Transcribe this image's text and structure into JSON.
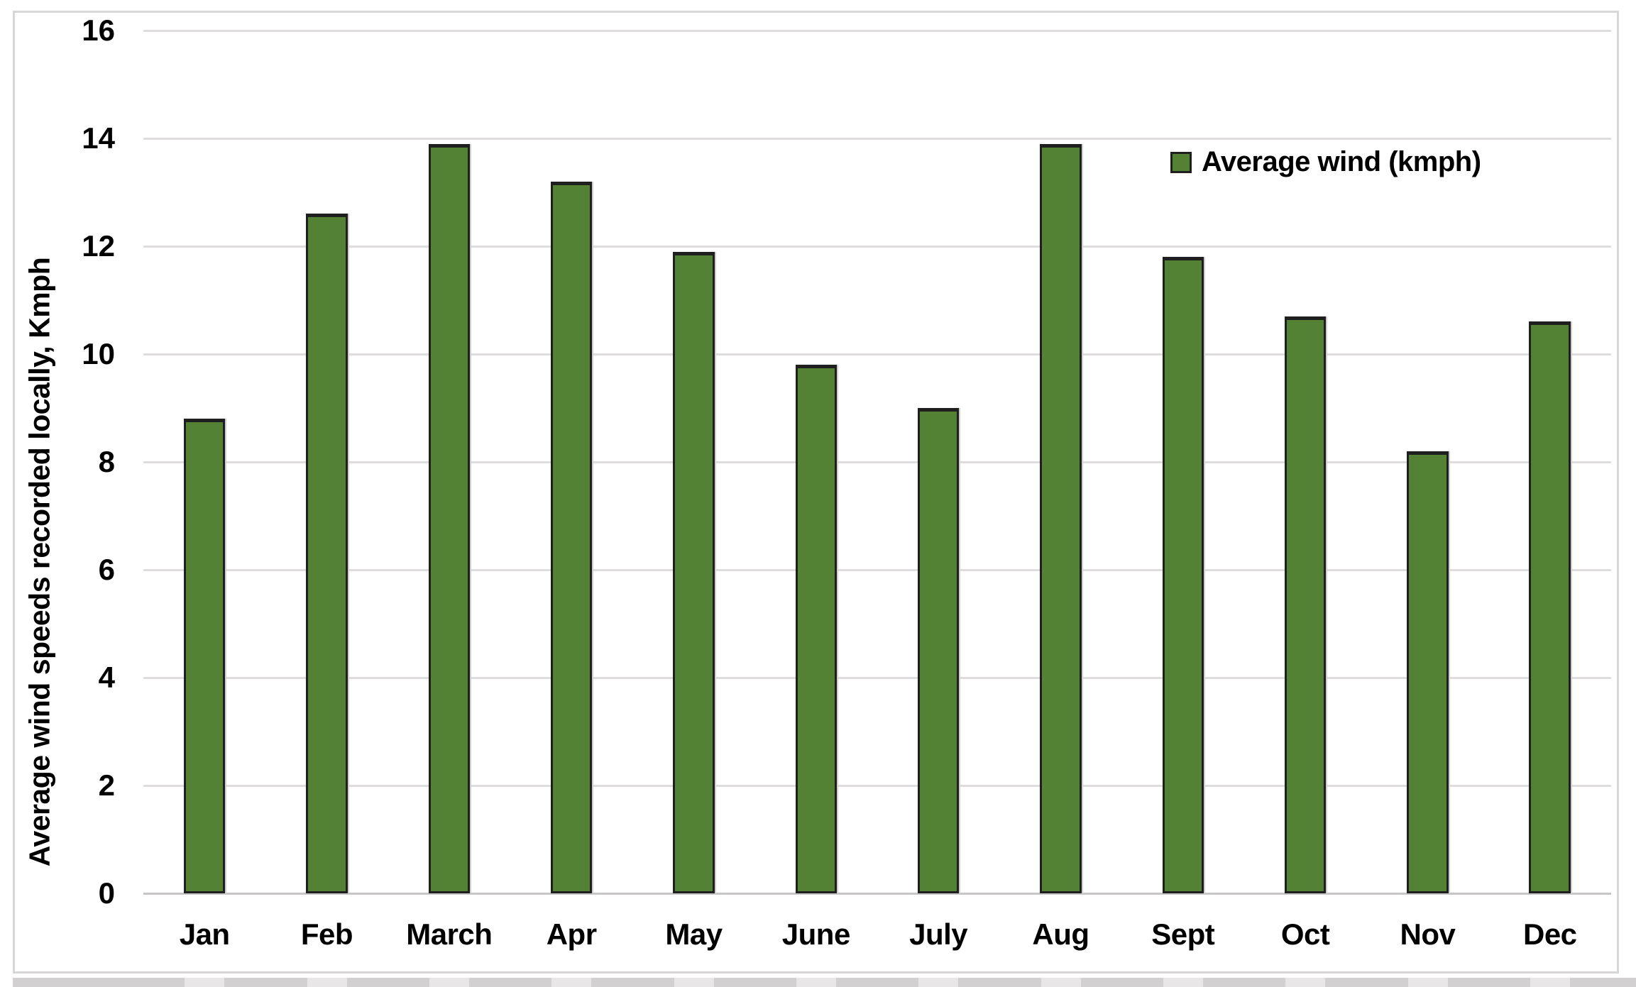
{
  "chart_data": {
    "type": "bar",
    "title": "",
    "xlabel": "",
    "ylabel": "Average wind speeds recorded locally, Kmph",
    "categories": [
      "Jan",
      "Feb",
      "March",
      "Apr",
      "May",
      "June",
      "July",
      "Aug",
      "Sept",
      "Oct",
      "Nov",
      "Dec"
    ],
    "values": [
      8.8,
      12.6,
      13.9,
      13.2,
      11.9,
      9.8,
      9.0,
      13.9,
      11.8,
      10.7,
      8.2,
      10.6
    ],
    "series": [
      {
        "name": "Average wind (kmph)",
        "values": [
          8.8,
          12.6,
          13.9,
          13.2,
          11.9,
          9.8,
          9.0,
          13.9,
          11.8,
          10.7,
          8.2,
          10.6
        ]
      }
    ],
    "ylim": [
      0,
      16
    ],
    "yticks": [
      0,
      2,
      4,
      6,
      8,
      10,
      12,
      14,
      16
    ],
    "grid": true,
    "legend": {
      "label": "Average wind (kmph)",
      "position": "top-right"
    }
  },
  "colors": {
    "bar_fill": "#548235",
    "bar_border": "#1f1f1f",
    "gridline": "#dedcdc",
    "axis_line": "#c8c6c6",
    "frame_border": "#d8d6d6",
    "strip_base": "#d2d0d0",
    "strip_light": "#e8e6e6",
    "text": "#000000",
    "background": "#ffffff"
  }
}
